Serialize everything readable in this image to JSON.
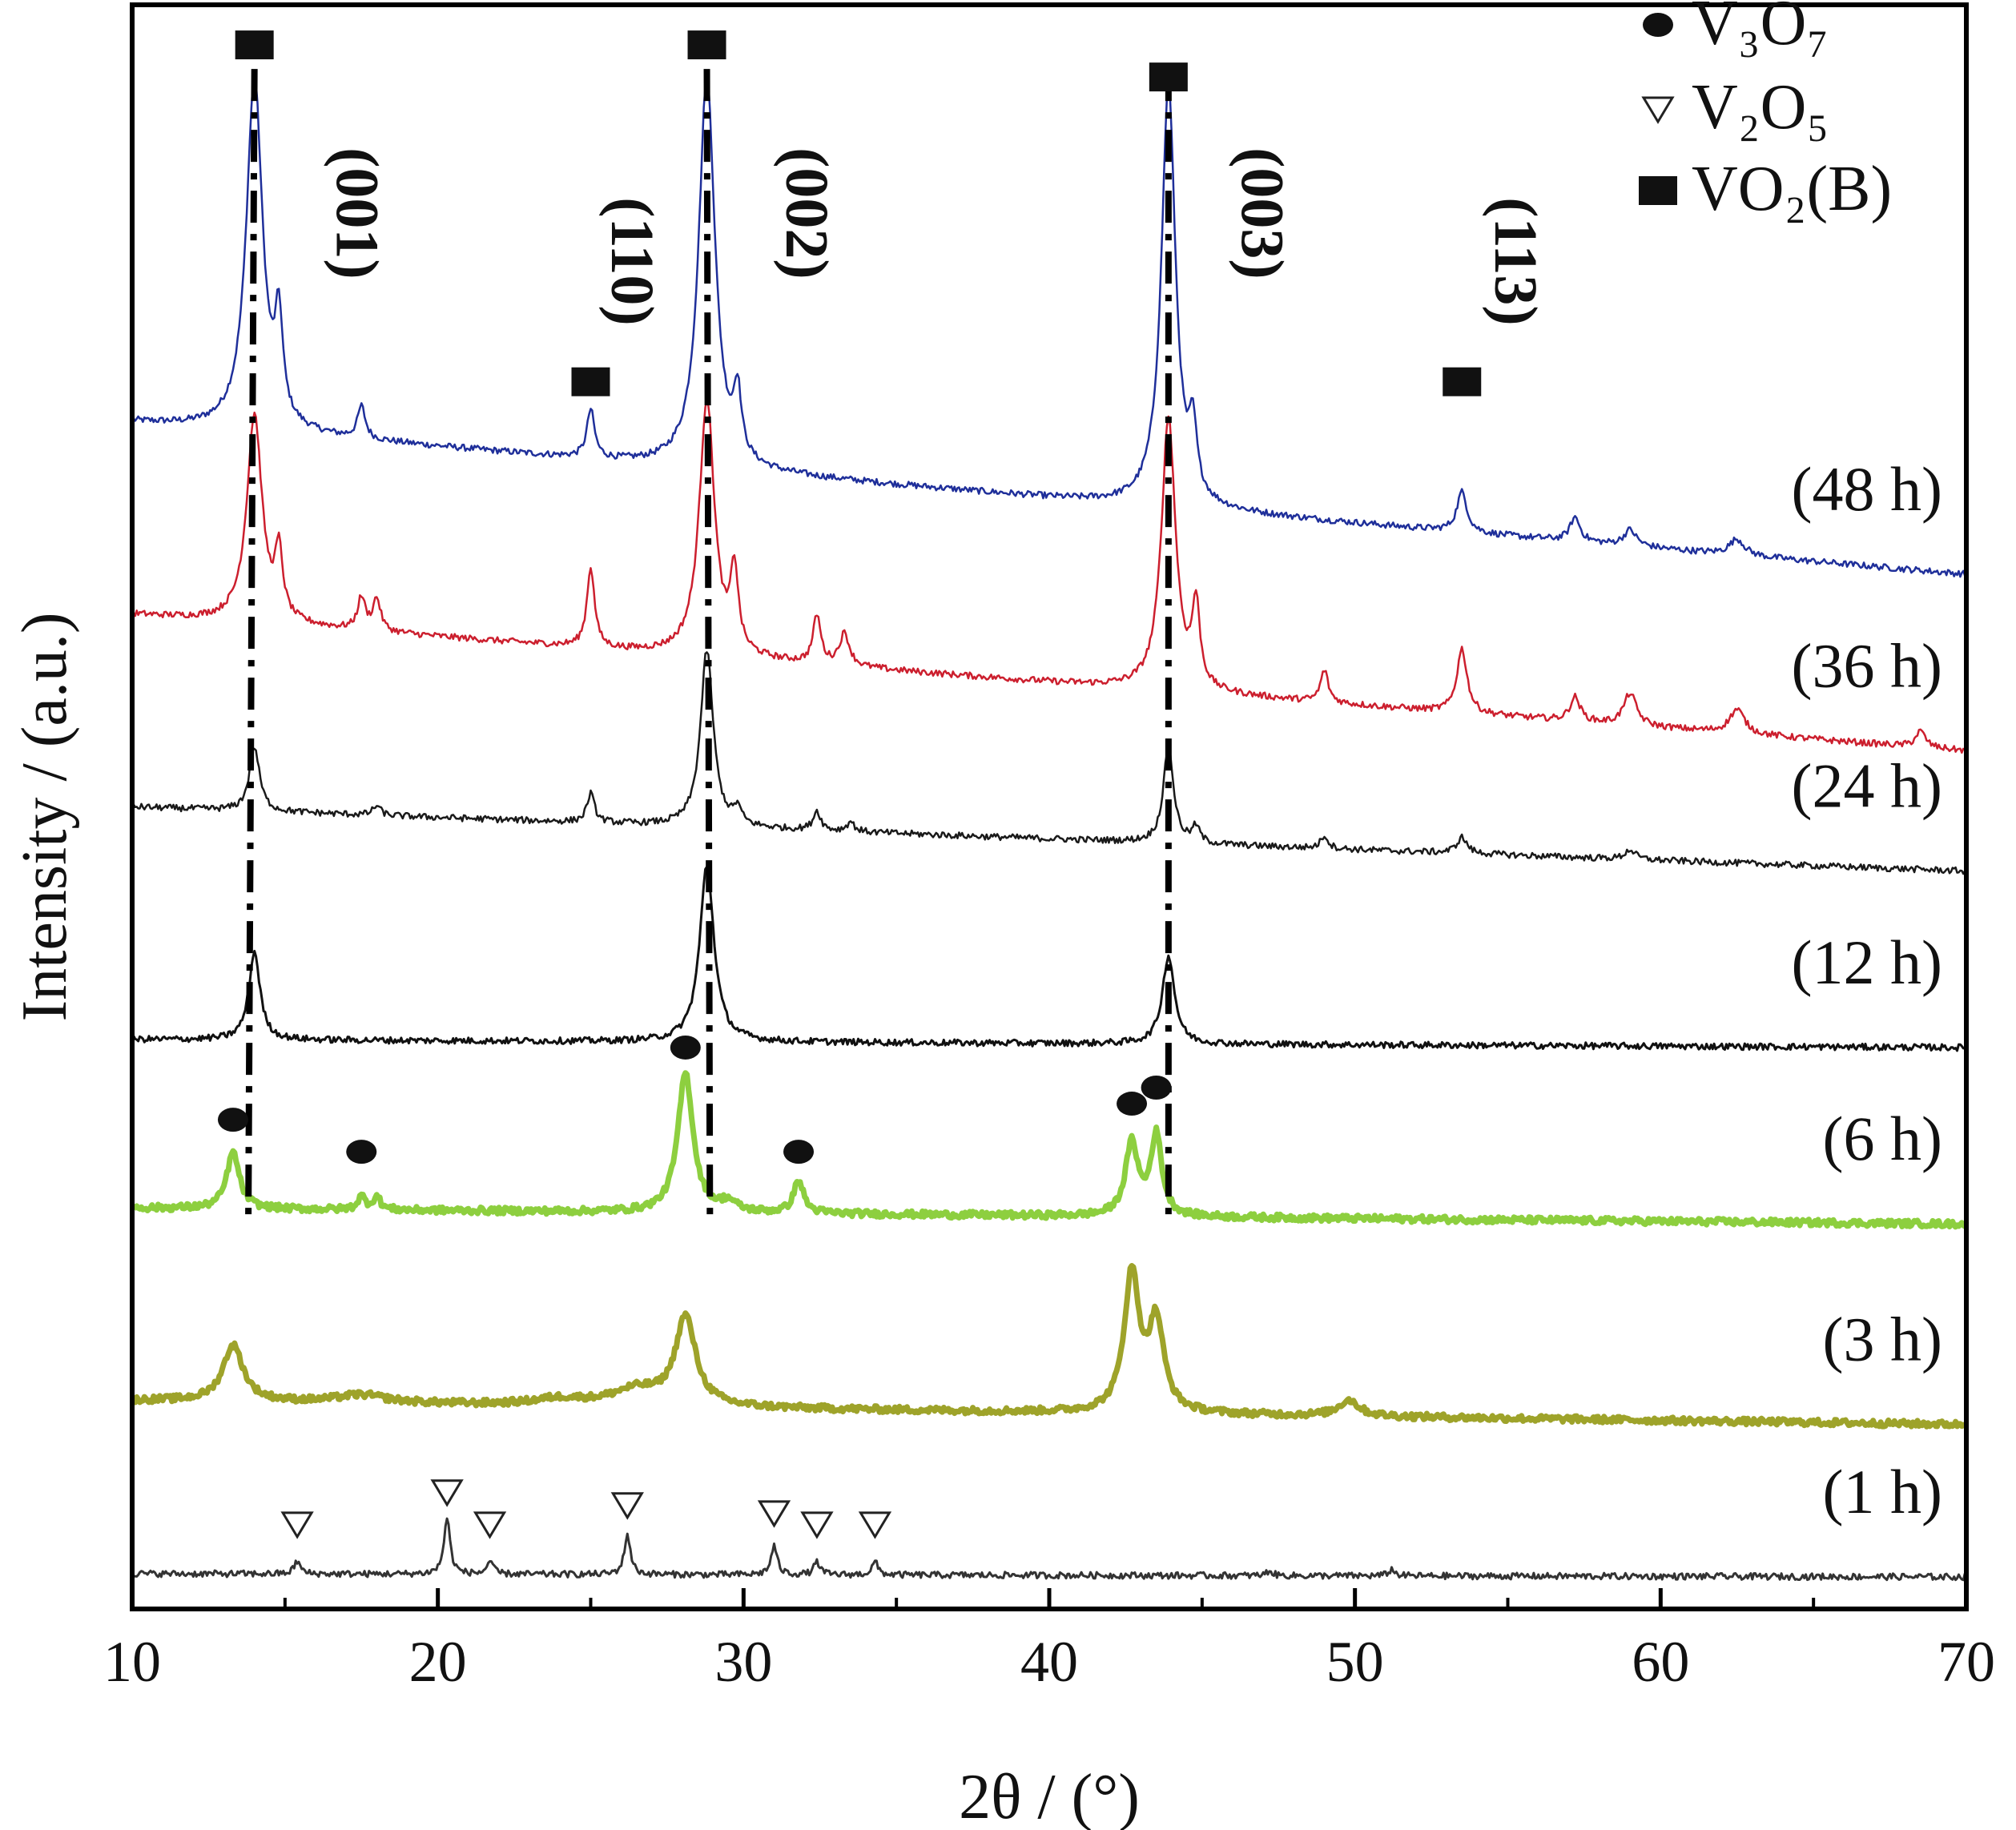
{
  "chart_data": {
    "type": "line",
    "xlabel": "2θ / (°)",
    "ylabel": "Intensity / (a.u.)",
    "xlim": [
      10,
      70
    ],
    "xticks": [
      10,
      20,
      30,
      40,
      50,
      60,
      70
    ],
    "yaxis_ticks": "none",
    "grid": false,
    "legend_position": "top-right",
    "legend": [
      {
        "marker": "circle",
        "label": "V₃O₇"
      },
      {
        "marker": "triangle",
        "label": "V₂O₅"
      },
      {
        "marker": "square",
        "label": "VO₂(B)"
      }
    ],
    "series": [
      {
        "name": "(48 h)",
        "color": "#1f2f9a",
        "stroke": 2.5,
        "baseline_left": 0.74,
        "baseline_right": 0.645,
        "peaks": [
          [
            14.0,
            0.22,
            0.32
          ],
          [
            14.8,
            0.06,
            0.15
          ],
          [
            17.5,
            0.02,
            0.15
          ],
          [
            25.0,
            0.03,
            0.15
          ],
          [
            28.8,
            0.245,
            0.32
          ],
          [
            29.8,
            0.04,
            0.15
          ],
          [
            43.9,
            0.262,
            0.28
          ],
          [
            44.7,
            0.04,
            0.15
          ],
          [
            53.5,
            0.025,
            0.2
          ],
          [
            57.2,
            0.015,
            0.2
          ],
          [
            59.0,
            0.01,
            0.25
          ],
          [
            62.5,
            0.01,
            0.3
          ]
        ]
      },
      {
        "name": "(36 h)",
        "color": "#cc1f2e",
        "stroke": 2.5,
        "baseline_left": 0.62,
        "baseline_right": 0.535,
        "peaks": [
          [
            14.0,
            0.13,
            0.3
          ],
          [
            14.8,
            0.04,
            0.15
          ],
          [
            17.5,
            0.02,
            0.15
          ],
          [
            18.0,
            0.02,
            0.15
          ],
          [
            25.0,
            0.05,
            0.15
          ],
          [
            28.8,
            0.16,
            0.3
          ],
          [
            29.7,
            0.05,
            0.15
          ],
          [
            32.4,
            0.03,
            0.15
          ],
          [
            33.3,
            0.02,
            0.2
          ],
          [
            43.9,
            0.17,
            0.28
          ],
          [
            44.8,
            0.05,
            0.15
          ],
          [
            49.0,
            0.02,
            0.15
          ],
          [
            53.5,
            0.04,
            0.2
          ],
          [
            57.2,
            0.015,
            0.2
          ],
          [
            59.0,
            0.02,
            0.25
          ],
          [
            62.5,
            0.015,
            0.3
          ],
          [
            68.5,
            0.01,
            0.2
          ]
        ]
      },
      {
        "name": "(24 h)",
        "color": "#1a1a1a",
        "stroke": 2.5,
        "baseline_left": 0.5,
        "baseline_right": 0.46,
        "peaks": [
          [
            14.0,
            0.04,
            0.2
          ],
          [
            18.0,
            0.006,
            0.15
          ],
          [
            25.0,
            0.018,
            0.15
          ],
          [
            28.8,
            0.11,
            0.25
          ],
          [
            29.8,
            0.01,
            0.15
          ],
          [
            32.4,
            0.012,
            0.15
          ],
          [
            33.5,
            0.006,
            0.15
          ],
          [
            43.9,
            0.06,
            0.2
          ],
          [
            44.8,
            0.01,
            0.15
          ],
          [
            49.0,
            0.008,
            0.15
          ],
          [
            53.5,
            0.01,
            0.2
          ],
          [
            59.0,
            0.006,
            0.2
          ]
        ]
      },
      {
        "name": "(12 h)",
        "color": "#111111",
        "stroke": 3,
        "baseline_left": 0.355,
        "baseline_right": 0.35,
        "peaks": [
          [
            14.0,
            0.055,
            0.22
          ],
          [
            28.8,
            0.11,
            0.28
          ],
          [
            43.9,
            0.055,
            0.24
          ]
        ]
      },
      {
        "name": "(6 h)",
        "color": "#8dcf3f",
        "stroke": 7,
        "baseline_left": 0.25,
        "baseline_right": 0.24,
        "peaks": [
          [
            13.3,
            0.035,
            0.25
          ],
          [
            17.5,
            0.008,
            0.15
          ],
          [
            18.0,
            0.008,
            0.15
          ],
          [
            28.1,
            0.087,
            0.3
          ],
          [
            29.5,
            0.006,
            0.3
          ],
          [
            31.8,
            0.02,
            0.2
          ],
          [
            42.7,
            0.045,
            0.25
          ],
          [
            43.5,
            0.05,
            0.22
          ]
        ]
      },
      {
        "name": "(3 h)",
        "color": "#9ea32a",
        "stroke": 7,
        "baseline_left": 0.13,
        "baseline_right": 0.115,
        "peaks": [
          [
            13.3,
            0.035,
            0.4
          ],
          [
            17.5,
            0.005,
            1.0
          ],
          [
            24.0,
            0.004,
            1.0
          ],
          [
            26.5,
            0.01,
            1.0
          ],
          [
            28.1,
            0.055,
            0.4
          ],
          [
            42.7,
            0.085,
            0.3
          ],
          [
            43.5,
            0.055,
            0.3
          ],
          [
            49.8,
            0.01,
            0.4
          ]
        ]
      },
      {
        "name": "(1 h)",
        "color": "#333333",
        "stroke": 3,
        "baseline_left": 0.022,
        "baseline_right": 0.02,
        "peaks": [
          [
            15.4,
            0.008,
            0.12
          ],
          [
            20.3,
            0.035,
            0.12
          ],
          [
            21.7,
            0.008,
            0.12
          ],
          [
            26.2,
            0.025,
            0.12
          ],
          [
            31.0,
            0.018,
            0.12
          ],
          [
            32.4,
            0.008,
            0.12
          ],
          [
            34.3,
            0.008,
            0.12
          ],
          [
            47.2,
            0.003,
            0.12
          ],
          [
            51.2,
            0.004,
            0.12
          ]
        ]
      }
    ],
    "reflections": [
      {
        "hkl": "(001)",
        "x": 14.0
      },
      {
        "hkl": "(110)",
        "x": 25.0
      },
      {
        "hkl": "(002)",
        "x": 28.8
      },
      {
        "hkl": "(003)",
        "x": 43.9
      },
      {
        "hkl": "(113)",
        "x": 53.5
      }
    ],
    "markers": [
      {
        "shape": "square",
        "x": 14.0,
        "level": 0.975
      },
      {
        "shape": "square",
        "x": 28.8,
        "level": 0.975
      },
      {
        "shape": "square",
        "x": 43.9,
        "level": 0.955
      },
      {
        "shape": "square",
        "x": 25.0,
        "level": 0.765
      },
      {
        "shape": "square",
        "x": 53.5,
        "level": 0.765
      },
      {
        "shape": "circle",
        "x": 13.3,
        "level": 0.305
      },
      {
        "shape": "circle",
        "x": 17.5,
        "level": 0.285
      },
      {
        "shape": "circle",
        "x": 28.1,
        "level": 0.35
      },
      {
        "shape": "circle",
        "x": 31.8,
        "level": 0.285
      },
      {
        "shape": "circle",
        "x": 42.7,
        "level": 0.315
      },
      {
        "shape": "circle",
        "x": 43.5,
        "level": 0.325
      },
      {
        "shape": "triangle",
        "x": 15.4,
        "level": 0.053
      },
      {
        "shape": "triangle",
        "x": 20.3,
        "level": 0.073
      },
      {
        "shape": "triangle",
        "x": 21.7,
        "level": 0.053
      },
      {
        "shape": "triangle",
        "x": 26.2,
        "level": 0.065
      },
      {
        "shape": "triangle",
        "x": 31.0,
        "level": 0.06
      },
      {
        "shape": "triangle",
        "x": 32.4,
        "level": 0.053
      },
      {
        "shape": "triangle",
        "x": 34.3,
        "level": 0.053
      }
    ]
  }
}
